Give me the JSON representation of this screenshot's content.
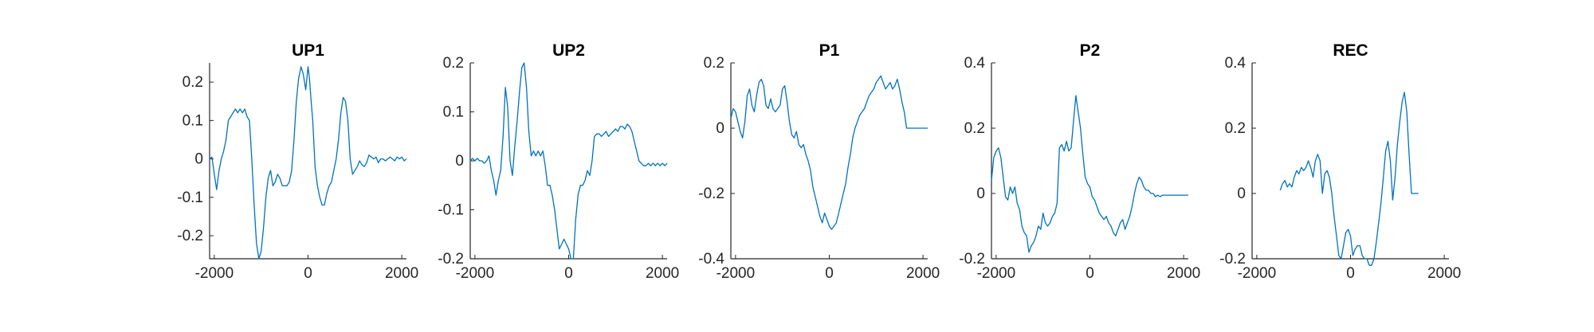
{
  "figure": {
    "background": "#ffffff",
    "line_color": "#0072BD"
  },
  "chart_data": [
    {
      "type": "line",
      "title": "UP1",
      "xlim": [
        -2100,
        2100
      ],
      "ylim": [
        -0.26,
        0.25
      ],
      "xticks": [
        -2000,
        0,
        2000
      ],
      "yticks": [
        -0.2,
        -0.1,
        0,
        0.1,
        0.2
      ],
      "ytick_labels": [
        "-0.2",
        "-0.1",
        "0",
        "0.1",
        "0.2"
      ],
      "grid": false,
      "series": [
        {
          "x": [
            -2100,
            -2050,
            -2000,
            -1950,
            -1900,
            -1850,
            -1800,
            -1750,
            -1700,
            -1650,
            -1600,
            -1550,
            -1500,
            -1450,
            -1400,
            -1350,
            -1300,
            -1250,
            -1200,
            -1150,
            -1100,
            -1050,
            -1000,
            -950,
            -900,
            -850,
            -800,
            -750,
            -700,
            -650,
            -600,
            -550,
            -500,
            -450,
            -400,
            -350,
            -300,
            -250,
            -200,
            -150,
            -100,
            -50,
            0,
            30,
            60,
            100,
            150,
            200,
            250,
            300,
            350,
            400,
            450,
            500,
            550,
            600,
            650,
            700,
            750,
            800,
            850,
            900,
            950,
            1000,
            1050,
            1100,
            1150,
            1200,
            1250,
            1300,
            1350,
            1400,
            1450,
            1500,
            1550,
            1600,
            1650,
            1700,
            1750,
            1800,
            1850,
            1900,
            1950,
            2000,
            2050,
            2100
          ],
          "y": [
            0.0,
            0.005,
            -0.04,
            -0.08,
            -0.03,
            0.0,
            0.02,
            0.05,
            0.1,
            0.11,
            0.12,
            0.13,
            0.12,
            0.13,
            0.12,
            0.13,
            0.11,
            0.1,
            0.0,
            -0.12,
            -0.22,
            -0.26,
            -0.24,
            -0.18,
            -0.1,
            -0.05,
            -0.03,
            -0.07,
            -0.06,
            -0.04,
            -0.05,
            -0.07,
            -0.07,
            -0.07,
            -0.06,
            -0.03,
            0.05,
            0.15,
            0.21,
            0.24,
            0.22,
            0.18,
            0.24,
            0.21,
            0.16,
            0.1,
            -0.02,
            -0.07,
            -0.1,
            -0.12,
            -0.12,
            -0.09,
            -0.07,
            -0.06,
            -0.03,
            0.0,
            0.05,
            0.12,
            0.16,
            0.15,
            0.1,
            0.0,
            -0.04,
            -0.03,
            -0.02,
            -0.005,
            -0.015,
            -0.02,
            -0.01,
            0.01,
            0.005,
            0.0,
            0.005,
            -0.01,
            0.0,
            0.0,
            -0.005,
            0.0,
            0.005,
            0.0,
            -0.005,
            0.005,
            0.0,
            0.005,
            -0.005,
            0.0
          ]
        }
      ]
    },
    {
      "type": "line",
      "title": "UP2",
      "xlim": [
        -2100,
        2100
      ],
      "ylim": [
        -0.2,
        0.2
      ],
      "xticks": [
        -2000,
        0,
        2000
      ],
      "yticks": [
        -0.2,
        -0.1,
        0,
        0.1,
        0.2
      ],
      "ytick_labels": [
        "-0.2",
        "-0.1",
        "0",
        "0.1",
        "0.2"
      ],
      "grid": false,
      "series": [
        {
          "x": [
            -2100,
            -2050,
            -2000,
            -1950,
            -1900,
            -1850,
            -1800,
            -1750,
            -1700,
            -1650,
            -1600,
            -1550,
            -1500,
            -1450,
            -1400,
            -1350,
            -1300,
            -1250,
            -1200,
            -1150,
            -1100,
            -1050,
            -1000,
            -950,
            -900,
            -850,
            -800,
            -750,
            -700,
            -650,
            -600,
            -550,
            -500,
            -450,
            -400,
            -350,
            -300,
            -250,
            -200,
            -150,
            -100,
            -50,
            0,
            50,
            100,
            150,
            200,
            250,
            300,
            350,
            400,
            450,
            500,
            550,
            600,
            650,
            700,
            750,
            800,
            850,
            900,
            950,
            1000,
            1050,
            1100,
            1150,
            1200,
            1250,
            1300,
            1350,
            1400,
            1450,
            1500,
            1550,
            1600,
            1650,
            1700,
            1750,
            1800,
            1850,
            1900,
            1950,
            2000,
            2050,
            2100
          ],
          "y": [
            0.0,
            0.005,
            0.0,
            0.005,
            0.0,
            0.0,
            -0.005,
            0.0,
            0.01,
            -0.02,
            -0.04,
            -0.07,
            -0.04,
            -0.02,
            0.05,
            0.15,
            0.11,
            0.0,
            -0.03,
            0.03,
            0.08,
            0.14,
            0.19,
            0.2,
            0.15,
            0.06,
            0.01,
            0.02,
            0.01,
            0.02,
            0.01,
            0.02,
            -0.01,
            -0.05,
            -0.05,
            -0.07,
            -0.1,
            -0.14,
            -0.18,
            -0.17,
            -0.16,
            -0.17,
            -0.18,
            -0.2,
            -0.2,
            -0.12,
            -0.07,
            -0.05,
            -0.05,
            -0.04,
            -0.02,
            -0.03,
            0.0,
            0.05,
            0.055,
            0.055,
            0.05,
            0.055,
            0.06,
            0.05,
            0.055,
            0.06,
            0.065,
            0.06,
            0.07,
            0.07,
            0.065,
            0.075,
            0.07,
            0.06,
            0.04,
            0.02,
            0.0,
            -0.005,
            -0.01,
            -0.01,
            -0.005,
            -0.01,
            -0.005,
            -0.01,
            -0.005,
            -0.01,
            -0.005,
            -0.01,
            -0.005
          ]
        }
      ]
    },
    {
      "type": "line",
      "title": "P1",
      "xlim": [
        -2100,
        2100
      ],
      "ylim": [
        -0.4,
        0.2
      ],
      "xticks": [
        -2000,
        0,
        2000
      ],
      "yticks": [
        -0.4,
        -0.2,
        0,
        0.2
      ],
      "ytick_labels": [
        "-0.4",
        "-0.2",
        "0",
        "0.2"
      ],
      "grid": false,
      "series": [
        {
          "x": [
            -2100,
            -2050,
            -2000,
            -1950,
            -1900,
            -1850,
            -1800,
            -1750,
            -1700,
            -1650,
            -1600,
            -1550,
            -1500,
            -1450,
            -1400,
            -1350,
            -1300,
            -1250,
            -1200,
            -1150,
            -1100,
            -1050,
            -1000,
            -950,
            -900,
            -850,
            -800,
            -750,
            -700,
            -650,
            -600,
            -550,
            -500,
            -450,
            -400,
            -350,
            -300,
            -250,
            -200,
            -150,
            -100,
            -50,
            0,
            50,
            100,
            150,
            200,
            250,
            300,
            350,
            400,
            450,
            500,
            550,
            600,
            650,
            700,
            750,
            800,
            850,
            900,
            950,
            1000,
            1050,
            1100,
            1150,
            1200,
            1250,
            1300,
            1350,
            1400,
            1450,
            1500,
            1550,
            1600,
            1650,
            1700,
            1750,
            1800,
            1850,
            1900,
            1950,
            2000,
            2050,
            2100
          ],
          "y": [
            0.03,
            0.06,
            0.05,
            0.02,
            -0.01,
            -0.03,
            0.02,
            0.1,
            0.12,
            0.07,
            0.05,
            0.1,
            0.14,
            0.15,
            0.13,
            0.07,
            0.06,
            0.09,
            0.06,
            0.05,
            0.06,
            0.07,
            0.12,
            0.13,
            0.08,
            0.02,
            -0.02,
            -0.03,
            -0.01,
            -0.05,
            -0.06,
            -0.05,
            -0.08,
            -0.1,
            -0.13,
            -0.18,
            -0.21,
            -0.24,
            -0.27,
            -0.29,
            -0.26,
            -0.28,
            -0.3,
            -0.31,
            -0.3,
            -0.29,
            -0.26,
            -0.23,
            -0.2,
            -0.17,
            -0.12,
            -0.08,
            -0.03,
            0.0,
            0.02,
            0.04,
            0.05,
            0.06,
            0.08,
            0.1,
            0.11,
            0.12,
            0.14,
            0.15,
            0.16,
            0.14,
            0.12,
            0.13,
            0.14,
            0.12,
            0.13,
            0.15,
            0.12,
            0.08,
            0.05,
            0.0,
            0.0,
            0.0,
            0.0,
            0.0,
            0.0,
            0.0,
            0.0,
            0.0,
            0.0
          ]
        }
      ]
    },
    {
      "type": "line",
      "title": "P2",
      "xlim": [
        -2100,
        2100
      ],
      "ylim": [
        -0.2,
        0.4
      ],
      "xticks": [
        -2000,
        0,
        2000
      ],
      "yticks": [
        -0.2,
        0,
        0.2,
        0.4
      ],
      "ytick_labels": [
        "-0.2",
        "0",
        "0.2",
        "0.4"
      ],
      "grid": false,
      "series": [
        {
          "x": [
            -2100,
            -2050,
            -2000,
            -1950,
            -1900,
            -1850,
            -1800,
            -1750,
            -1700,
            -1650,
            -1600,
            -1550,
            -1500,
            -1450,
            -1400,
            -1350,
            -1300,
            -1250,
            -1200,
            -1150,
            -1100,
            -1050,
            -1000,
            -950,
            -900,
            -850,
            -800,
            -750,
            -700,
            -650,
            -600,
            -550,
            -500,
            -450,
            -400,
            -350,
            -300,
            -250,
            -200,
            -150,
            -100,
            -50,
            0,
            50,
            100,
            150,
            200,
            250,
            300,
            350,
            400,
            450,
            500,
            550,
            600,
            650,
            700,
            750,
            800,
            850,
            900,
            950,
            1000,
            1050,
            1100,
            1150,
            1200,
            1250,
            1300,
            1350,
            1400,
            1450,
            1500,
            1550,
            1600,
            1650,
            1700,
            1750,
            1800,
            1850,
            1900,
            1950,
            2000,
            2050,
            2100
          ],
          "y": [
            0.04,
            0.11,
            0.13,
            0.14,
            0.11,
            0.05,
            -0.01,
            -0.02,
            0.02,
            0.0,
            0.02,
            -0.03,
            -0.05,
            -0.1,
            -0.12,
            -0.13,
            -0.18,
            -0.16,
            -0.15,
            -0.13,
            -0.1,
            -0.11,
            -0.06,
            -0.09,
            -0.1,
            -0.09,
            -0.07,
            -0.06,
            -0.03,
            0.14,
            0.15,
            0.13,
            0.16,
            0.13,
            0.14,
            0.22,
            0.3,
            0.25,
            0.2,
            0.12,
            0.05,
            0.03,
            0.02,
            -0.01,
            -0.02,
            -0.04,
            -0.06,
            -0.07,
            -0.08,
            -0.07,
            -0.09,
            -0.1,
            -0.12,
            -0.13,
            -0.11,
            -0.09,
            -0.08,
            -0.11,
            -0.09,
            -0.07,
            -0.04,
            0.0,
            0.03,
            0.05,
            0.04,
            0.02,
            0.01,
            0.01,
            0.0,
            0.0,
            -0.01,
            -0.005,
            -0.01,
            -0.005,
            -0.005,
            -0.005,
            -0.005,
            -0.005,
            -0.005,
            -0.005,
            -0.005,
            -0.005,
            -0.005,
            -0.005,
            -0.005
          ]
        }
      ]
    },
    {
      "type": "line",
      "title": "REC",
      "xlim": [
        -2100,
        2100
      ],
      "ylim": [
        -0.2,
        0.4
      ],
      "xticks": [
        -2000,
        0,
        2000
      ],
      "yticks": [
        -0.2,
        0,
        0.2,
        0.4
      ],
      "ytick_labels": [
        "-0.2",
        "0",
        "0.2",
        "0.4"
      ],
      "grid": false,
      "series": [
        {
          "x": [
            -1500,
            -1450,
            -1400,
            -1350,
            -1300,
            -1250,
            -1200,
            -1150,
            -1100,
            -1050,
            -1000,
            -950,
            -900,
            -850,
            -800,
            -750,
            -700,
            -650,
            -600,
            -550,
            -500,
            -450,
            -400,
            -350,
            -300,
            -250,
            -200,
            -150,
            -100,
            -50,
            0,
            50,
            100,
            150,
            200,
            250,
            300,
            350,
            400,
            450,
            500,
            550,
            600,
            650,
            700,
            750,
            800,
            850,
            900,
            950,
            1000,
            1050,
            1100,
            1150,
            1200,
            1250,
            1300,
            1350,
            1400,
            1450
          ],
          "y": [
            0.01,
            0.03,
            0.04,
            0.02,
            0.03,
            0.02,
            0.05,
            0.07,
            0.06,
            0.08,
            0.07,
            0.08,
            0.1,
            0.08,
            0.05,
            0.1,
            0.12,
            0.1,
            0.0,
            0.06,
            0.07,
            0.05,
            0.0,
            -0.07,
            -0.13,
            -0.19,
            -0.2,
            -0.16,
            -0.12,
            -0.11,
            -0.13,
            -0.19,
            -0.17,
            -0.16,
            -0.16,
            -0.19,
            -0.2,
            -0.2,
            -0.22,
            -0.22,
            -0.2,
            -0.15,
            -0.09,
            -0.03,
            0.05,
            0.13,
            0.16,
            0.1,
            -0.02,
            0.05,
            0.15,
            0.22,
            0.28,
            0.31,
            0.25,
            0.12,
            0.0,
            0.0,
            0.0,
            0.0
          ]
        }
      ]
    }
  ]
}
